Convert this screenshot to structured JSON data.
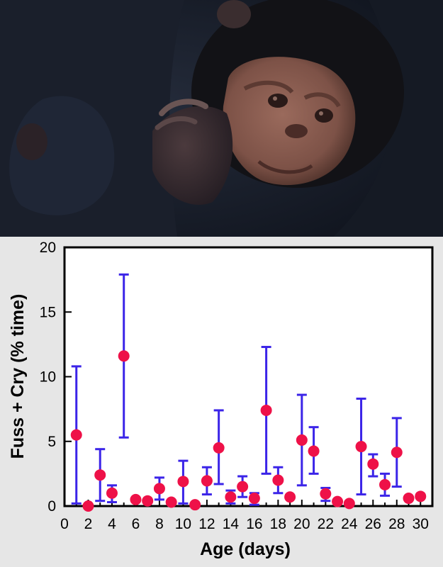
{
  "photo": {
    "subject": "infant chimpanzee held by mother"
  },
  "colors": {
    "background": "#e6e6e6",
    "plot_background": "#ffffff",
    "marker": "#ee1148",
    "error_bar": "#3b24e8",
    "axis": "#000000"
  },
  "chart_data": {
    "type": "scatter",
    "title": "",
    "xlabel": "Age (days)",
    "ylabel": "Fuss + Cry (% time)",
    "xlim": [
      0,
      31
    ],
    "ylim": [
      0,
      20
    ],
    "xticks": [
      0,
      2,
      4,
      6,
      8,
      10,
      12,
      14,
      16,
      18,
      20,
      22,
      24,
      26,
      28,
      30
    ],
    "yticks": [
      0,
      5,
      10,
      15,
      20
    ],
    "grid": false,
    "legend": "none",
    "points": [
      {
        "x": 1,
        "y": 5.5,
        "lo": 0.2,
        "hi": 10.8
      },
      {
        "x": 2,
        "y": 0.0,
        "lo": null,
        "hi": null
      },
      {
        "x": 3,
        "y": 2.4,
        "lo": 0.4,
        "hi": 4.4
      },
      {
        "x": 4,
        "y": 1.0,
        "lo": 0.3,
        "hi": 1.6
      },
      {
        "x": 5,
        "y": 11.6,
        "lo": 5.3,
        "hi": 17.9
      },
      {
        "x": 6,
        "y": 0.5,
        "lo": null,
        "hi": null
      },
      {
        "x": 7,
        "y": 0.4,
        "lo": null,
        "hi": null
      },
      {
        "x": 8,
        "y": 1.35,
        "lo": 0.5,
        "hi": 2.2
      },
      {
        "x": 9,
        "y": 0.3,
        "lo": null,
        "hi": null
      },
      {
        "x": 10,
        "y": 1.9,
        "lo": 0.2,
        "hi": 3.5
      },
      {
        "x": 11,
        "y": 0.1,
        "lo": null,
        "hi": null
      },
      {
        "x": 12,
        "y": 1.95,
        "lo": 0.9,
        "hi": 3.0
      },
      {
        "x": 13,
        "y": 4.5,
        "lo": 1.7,
        "hi": 7.4
      },
      {
        "x": 14,
        "y": 0.7,
        "lo": 0.2,
        "hi": 1.2
      },
      {
        "x": 15,
        "y": 1.5,
        "lo": 0.7,
        "hi": 2.3
      },
      {
        "x": 16,
        "y": 0.6,
        "lo": 0.1,
        "hi": 1.0
      },
      {
        "x": 17,
        "y": 7.4,
        "lo": 2.5,
        "hi": 12.3
      },
      {
        "x": 18,
        "y": 2.0,
        "lo": 1.0,
        "hi": 3.0
      },
      {
        "x": 19,
        "y": 0.7,
        "lo": null,
        "hi": null
      },
      {
        "x": 20,
        "y": 5.1,
        "lo": 1.6,
        "hi": 8.6
      },
      {
        "x": 21,
        "y": 4.25,
        "lo": 2.5,
        "hi": 6.1
      },
      {
        "x": 22,
        "y": 0.95,
        "lo": 0.4,
        "hi": 1.4
      },
      {
        "x": 23,
        "y": 0.35,
        "lo": null,
        "hi": null
      },
      {
        "x": 24,
        "y": 0.2,
        "lo": null,
        "hi": null
      },
      {
        "x": 25,
        "y": 4.6,
        "lo": 0.9,
        "hi": 8.3
      },
      {
        "x": 26,
        "y": 3.25,
        "lo": 2.3,
        "hi": 4.0
      },
      {
        "x": 27,
        "y": 1.65,
        "lo": 0.8,
        "hi": 2.5
      },
      {
        "x": 28,
        "y": 4.15,
        "lo": 1.5,
        "hi": 6.8
      },
      {
        "x": 29,
        "y": 0.6,
        "lo": null,
        "hi": null
      },
      {
        "x": 30,
        "y": 0.75,
        "lo": null,
        "hi": null
      }
    ]
  }
}
